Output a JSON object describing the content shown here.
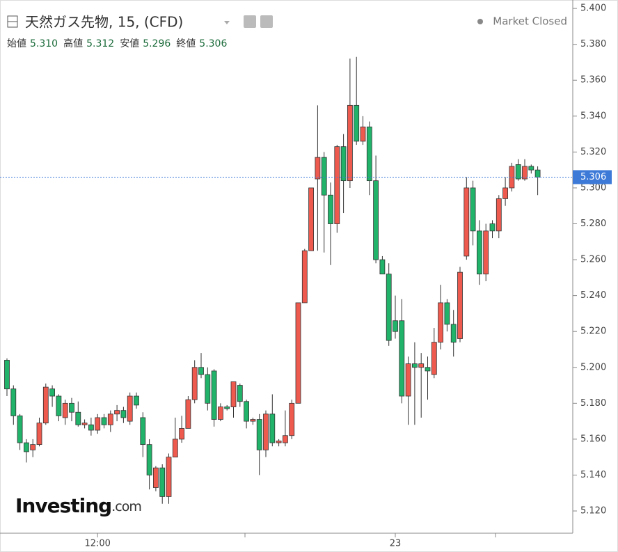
{
  "header": {
    "instrument": "天然ガス先物, 15, (CFD)",
    "status": "Market Closed",
    "logo": "Investing",
    "logo_suffix": ".com",
    "items": [
      {
        "label": "始値",
        "value": "5.310"
      },
      {
        "label": "高値",
        "value": "5.312"
      },
      {
        "label": "安値",
        "value": "5.296"
      },
      {
        "label": "終値",
        "value": "5.306"
      }
    ]
  },
  "chart_data": {
    "type": "candlestick",
    "up_color": "#ef5a4f",
    "down_color": "#21b36a",
    "categories": [
      null,
      null,
      null,
      null,
      null,
      null,
      null,
      null,
      null,
      null,
      null,
      null,
      null,
      null,
      "12:00",
      null,
      null,
      null,
      null,
      null,
      null,
      null,
      null,
      null,
      null,
      null,
      null,
      null,
      null,
      null,
      null,
      null,
      null,
      null,
      null,
      null,
      null,
      null,
      null,
      null,
      null,
      null,
      null,
      null,
      null,
      null,
      null,
      null,
      null,
      null,
      null,
      null,
      null,
      null,
      null,
      null,
      null,
      null,
      null,
      null,
      "23",
      null,
      null,
      null,
      null,
      null,
      null,
      null,
      null,
      null,
      null,
      null,
      null,
      null,
      null,
      null,
      null,
      null,
      null,
      null,
      null,
      null,
      null
    ],
    "open": [
      5.204,
      5.188,
      5.173,
      5.158,
      5.154,
      5.157,
      5.169,
      5.188,
      5.184,
      5.172,
      5.18,
      5.175,
      5.168,
      5.168,
      5.165,
      5.172,
      5.168,
      5.174,
      5.176,
      5.17,
      5.184,
      5.172,
      5.157,
      5.133,
      5.144,
      5.128,
      5.15,
      5.16,
      5.166,
      5.182,
      5.2,
      5.196,
      5.198,
      5.171,
      5.178,
      5.178,
      5.19,
      5.181,
      5.17,
      5.171,
      5.154,
      5.174,
      5.158,
      5.158,
      5.162,
      5.18,
      5.236,
      5.265,
      5.305,
      5.317,
      5.296,
      5.28,
      5.323,
      5.304,
      5.346,
      5.326,
      5.334,
      5.304,
      5.26,
      5.252,
      5.226,
      5.226,
      5.184,
      5.202,
      5.2,
      5.2,
      5.196,
      5.214,
      5.236,
      5.224,
      5.216,
      5.262,
      5.3,
      5.276,
      5.252,
      5.28,
      5.276,
      5.294,
      5.3,
      5.313,
      5.305,
      5.312,
      5.31
    ],
    "high": [
      5.205,
      5.19,
      5.174,
      5.16,
      5.16,
      5.172,
      5.191,
      5.19,
      5.185,
      5.182,
      5.183,
      5.181,
      5.171,
      5.172,
      5.174,
      5.174,
      5.176,
      5.179,
      5.178,
      5.186,
      5.186,
      5.175,
      5.16,
      5.145,
      5.146,
      5.152,
      5.172,
      5.173,
      5.184,
      5.204,
      5.208,
      5.2,
      5.199,
      5.18,
      5.179,
      5.192,
      5.191,
      5.182,
      5.172,
      5.174,
      5.176,
      5.185,
      5.16,
      5.176,
      5.182,
      5.236,
      5.266,
      5.3,
      5.346,
      5.32,
      5.303,
      5.324,
      5.33,
      5.372,
      5.373,
      5.34,
      5.337,
      5.318,
      5.262,
      5.258,
      5.24,
      5.238,
      5.206,
      5.214,
      5.208,
      5.206,
      5.222,
      5.246,
      5.238,
      5.232,
      5.256,
      5.306,
      5.304,
      5.282,
      5.28,
      5.282,
      5.296,
      5.306,
      5.314,
      5.316,
      5.316,
      5.313,
      5.312
    ],
    "low": [
      5.184,
      5.168,
      5.154,
      5.147,
      5.15,
      5.156,
      5.168,
      5.178,
      5.17,
      5.168,
      5.17,
      5.167,
      5.166,
      5.162,
      5.163,
      5.166,
      5.164,
      5.17,
      5.169,
      5.168,
      5.177,
      5.15,
      5.132,
      5.131,
      5.124,
      5.124,
      5.15,
      5.158,
      5.166,
      5.18,
      5.194,
      5.176,
      5.167,
      5.17,
      5.176,
      5.172,
      5.178,
      5.166,
      5.168,
      5.14,
      5.15,
      5.156,
      5.156,
      5.156,
      5.16,
      5.18,
      5.236,
      5.265,
      5.265,
      5.264,
      5.257,
      5.275,
      5.286,
      5.3,
      5.324,
      5.324,
      5.296,
      5.258,
      5.252,
      5.212,
      5.216,
      5.18,
      5.168,
      5.168,
      5.172,
      5.182,
      5.194,
      5.21,
      5.22,
      5.206,
      5.214,
      5.26,
      5.268,
      5.246,
      5.248,
      5.272,
      5.272,
      5.29,
      5.298,
      5.304,
      5.304,
      5.308,
      5.296
    ],
    "close": [
      5.188,
      5.173,
      5.158,
      5.153,
      5.157,
      5.169,
      5.189,
      5.184,
      5.173,
      5.18,
      5.175,
      5.168,
      5.169,
      5.165,
      5.172,
      5.168,
      5.174,
      5.176,
      5.172,
      5.184,
      5.179,
      5.157,
      5.14,
      5.144,
      5.128,
      5.15,
      5.16,
      5.166,
      5.182,
      5.2,
      5.196,
      5.18,
      5.171,
      5.178,
      5.177,
      5.192,
      5.181,
      5.17,
      5.171,
      5.154,
      5.174,
      5.158,
      5.159,
      5.162,
      5.18,
      5.236,
      5.265,
      5.3,
      5.317,
      5.296,
      5.28,
      5.323,
      5.304,
      5.346,
      5.326,
      5.334,
      5.304,
      5.26,
      5.252,
      5.215,
      5.22,
      5.184,
      5.202,
      5.2,
      5.202,
      5.198,
      5.214,
      5.236,
      5.224,
      5.214,
      5.253,
      5.3,
      5.276,
      5.252,
      5.276,
      5.276,
      5.294,
      5.3,
      5.312,
      5.305,
      5.312,
      5.31,
      5.306
    ],
    "last_price": {
      "value": 5.306,
      "label": "5.306"
    },
    "ylim": [
      5.1076,
      5.4047
    ],
    "yticks": [
      {
        "value": 5.12,
        "label": "5.120"
      },
      {
        "value": 5.14,
        "label": "5.140"
      },
      {
        "value": 5.16,
        "label": "5.160"
      },
      {
        "value": 5.18,
        "label": "5.180"
      },
      {
        "value": 5.2,
        "label": "5.200"
      },
      {
        "value": 5.22,
        "label": "5.220"
      },
      {
        "value": 5.24,
        "label": "5.240"
      },
      {
        "value": 5.26,
        "label": "5.260"
      },
      {
        "value": 5.28,
        "label": "5.280"
      },
      {
        "value": 5.3,
        "label": "5.300"
      },
      {
        "value": 5.32,
        "label": "5.320"
      },
      {
        "value": 5.34,
        "label": "5.340"
      },
      {
        "value": 5.36,
        "label": "5.360"
      },
      {
        "value": 5.38,
        "label": "5.380"
      },
      {
        "value": 5.4,
        "label": "5.400"
      }
    ]
  }
}
